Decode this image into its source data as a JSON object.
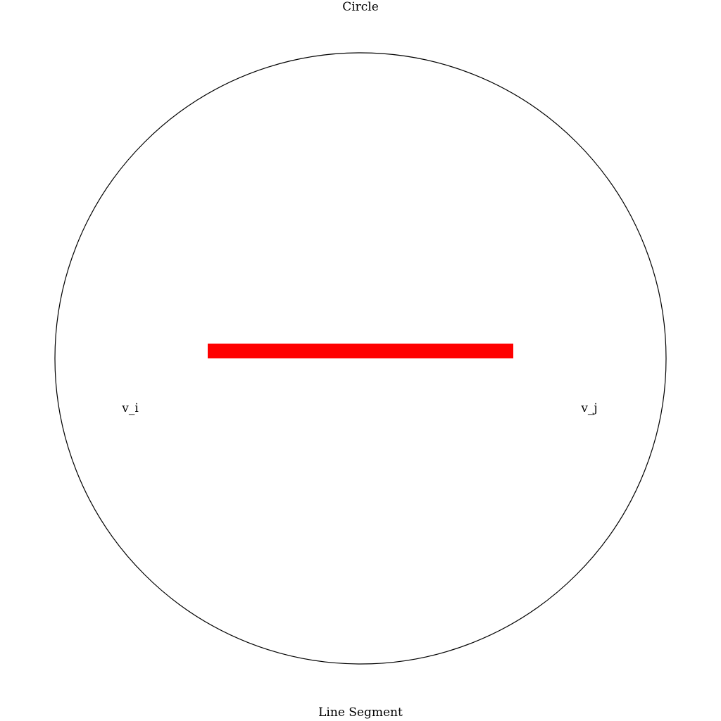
{
  "labels": {
    "top": "Circle",
    "bottom": "Line Segment",
    "left_vertex": "v_i",
    "right_vertex": "v_j"
  },
  "colors": {
    "segment": "#ff0000",
    "circle_stroke": "#000000",
    "background": "#ffffff"
  }
}
